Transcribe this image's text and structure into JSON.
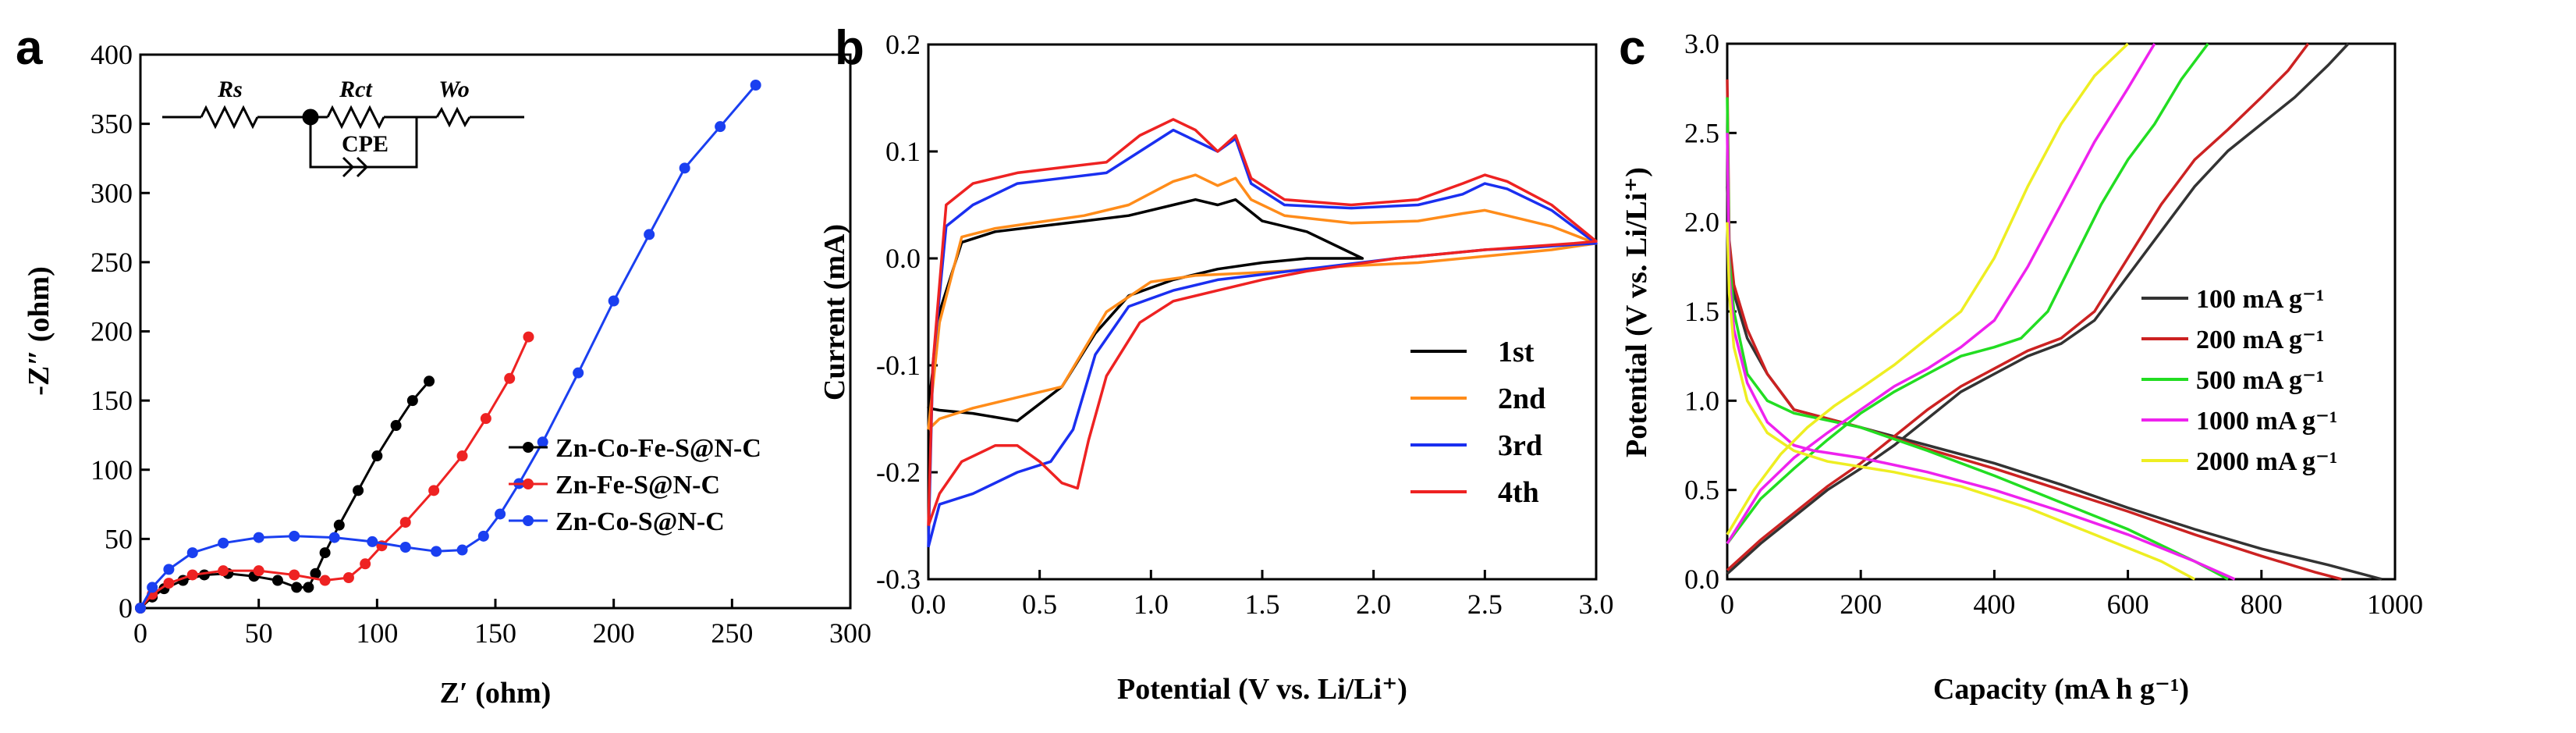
{
  "chart_data": [
    {
      "panel": "a",
      "type": "scatter",
      "xlabel": "Z′    (ohm)",
      "ylabel": "-Z″   (ohm)",
      "xlim": [
        0,
        300
      ],
      "ylim": [
        0,
        400
      ],
      "xticks": [
        0,
        50,
        100,
        150,
        200,
        250,
        300
      ],
      "yticks": [
        0,
        50,
        100,
        150,
        200,
        250,
        300,
        350,
        400
      ],
      "legend_position": "middle-right",
      "circuit": {
        "r1": "Rs",
        "r2": "Rct",
        "w": "Wo",
        "cpe": "CPE"
      },
      "series": [
        {
          "name": "Zn-Co-Fe-S@N-C",
          "color": "#000000",
          "x": [
            0,
            5,
            10,
            18,
            27,
            37,
            48,
            58,
            66,
            71,
            74,
            78,
            84,
            92,
            100,
            108,
            115,
            122
          ],
          "y": [
            0,
            8,
            14,
            20,
            24,
            25,
            23,
            20,
            15,
            15,
            25,
            40,
            60,
            85,
            110,
            132,
            150,
            164
          ]
        },
        {
          "name": "Zn-Fe-S@N-C",
          "color": "#ee2222",
          "x": [
            0,
            5,
            12,
            22,
            35,
            50,
            65,
            78,
            88,
            95,
            102,
            112,
            124,
            136,
            146,
            156,
            164
          ],
          "y": [
            0,
            10,
            18,
            24,
            27,
            27,
            24,
            20,
            22,
            32,
            45,
            62,
            85,
            110,
            137,
            166,
            196
          ]
        },
        {
          "name": "Zn-Co-S@N-C",
          "color": "#1a3ff0",
          "x": [
            0,
            5,
            12,
            22,
            35,
            50,
            65,
            82,
            98,
            112,
            125,
            136,
            145,
            152,
            160,
            170,
            185,
            200,
            215,
            230,
            245,
            260
          ],
          "y": [
            0,
            15,
            28,
            40,
            47,
            51,
            52,
            51,
            48,
            44,
            41,
            42,
            52,
            68,
            90,
            120,
            170,
            222,
            270,
            318,
            348,
            378
          ]
        }
      ]
    },
    {
      "panel": "b",
      "type": "line",
      "xlabel": "Potential (V vs. Li/Li⁺)",
      "ylabel": "Current (mA)",
      "xlim": [
        0,
        3
      ],
      "ylim": [
        -0.3,
        0.2
      ],
      "xticks": [
        "0.0",
        "0.5",
        "1.0",
        "1.5",
        "2.0",
        "2.5",
        "3.0"
      ],
      "yticks": [
        "0.2",
        "0.1",
        "0.0",
        "-0.1",
        "-0.2",
        "-0.3"
      ],
      "legend_position": "right",
      "series": [
        {
          "name": "1st",
          "color": "#000000",
          "x": [
            0.0,
            0.05,
            0.2,
            0.4,
            0.6,
            0.75,
            0.9,
            1.1,
            1.3,
            1.5,
            1.7,
            1.95,
            1.95,
            1.7,
            1.5,
            1.38,
            1.3,
            1.2,
            1.1,
            0.9,
            0.7,
            0.5,
            0.3,
            0.15,
            0.05,
            0.0
          ],
          "y": [
            -0.14,
            -0.142,
            -0.145,
            -0.152,
            -0.12,
            -0.07,
            -0.035,
            -0.02,
            -0.01,
            -0.004,
            0.0,
            0.0,
            0.0,
            0.025,
            0.035,
            0.055,
            0.05,
            0.055,
            0.05,
            0.04,
            0.035,
            0.03,
            0.025,
            0.015,
            -0.05,
            -0.14
          ]
        },
        {
          "name": "2nd",
          "color": "#ff8c1a",
          "x": [
            0.0,
            0.05,
            0.2,
            0.4,
            0.6,
            0.8,
            1.0,
            1.2,
            1.4,
            1.6,
            1.8,
            2.0,
            2.2,
            2.4,
            2.6,
            2.8,
            3.0,
            3.0,
            2.8,
            2.6,
            2.5,
            2.4,
            2.2,
            1.9,
            1.6,
            1.45,
            1.38,
            1.3,
            1.2,
            1.1,
            0.9,
            0.7,
            0.5,
            0.3,
            0.15,
            0.05,
            0.0
          ],
          "y": [
            -0.16,
            -0.15,
            -0.14,
            -0.13,
            -0.12,
            -0.05,
            -0.022,
            -0.016,
            -0.014,
            -0.012,
            -0.008,
            -0.006,
            -0.004,
            0.0,
            0.004,
            0.008,
            0.014,
            0.014,
            0.03,
            0.04,
            0.045,
            0.042,
            0.035,
            0.033,
            0.04,
            0.055,
            0.075,
            0.068,
            0.078,
            0.072,
            0.05,
            0.04,
            0.034,
            0.028,
            0.02,
            -0.06,
            -0.16
          ]
        },
        {
          "name": "3rd",
          "color": "#1a2ff0",
          "x": [
            0.0,
            0.05,
            0.2,
            0.4,
            0.55,
            0.65,
            0.75,
            0.9,
            1.1,
            1.3,
            1.5,
            1.7,
            1.9,
            2.1,
            2.3,
            2.5,
            2.7,
            2.9,
            3.0,
            3.0,
            2.8,
            2.6,
            2.5,
            2.4,
            2.2,
            1.9,
            1.6,
            1.45,
            1.38,
            1.3,
            1.2,
            1.1,
            0.95,
            0.8,
            0.6,
            0.4,
            0.2,
            0.08,
            0.02,
            0.0
          ],
          "y": [
            -0.27,
            -0.23,
            -0.22,
            -0.2,
            -0.19,
            -0.16,
            -0.09,
            -0.045,
            -0.03,
            -0.02,
            -0.015,
            -0.01,
            -0.005,
            0.0,
            0.004,
            0.008,
            0.01,
            0.013,
            0.014,
            0.014,
            0.045,
            0.065,
            0.07,
            0.06,
            0.05,
            0.047,
            0.05,
            0.07,
            0.112,
            0.1,
            0.11,
            0.12,
            0.1,
            0.08,
            0.075,
            0.07,
            0.05,
            0.03,
            -0.1,
            -0.27
          ]
        },
        {
          "name": "4th",
          "color": "#ee2222",
          "x": [
            0.0,
            0.05,
            0.15,
            0.3,
            0.4,
            0.5,
            0.6,
            0.67,
            0.72,
            0.8,
            0.95,
            1.1,
            1.3,
            1.5,
            1.7,
            1.9,
            2.1,
            2.3,
            2.5,
            2.7,
            2.9,
            3.0,
            3.0,
            2.8,
            2.6,
            2.5,
            2.4,
            2.2,
            1.9,
            1.6,
            1.45,
            1.38,
            1.3,
            1.2,
            1.1,
            0.95,
            0.8,
            0.6,
            0.4,
            0.2,
            0.08,
            0.02,
            0.0
          ],
          "y": [
            -0.25,
            -0.22,
            -0.19,
            -0.175,
            -0.175,
            -0.19,
            -0.21,
            -0.215,
            -0.17,
            -0.11,
            -0.06,
            -0.04,
            -0.03,
            -0.02,
            -0.012,
            -0.006,
            0.0,
            0.004,
            0.008,
            0.011,
            0.014,
            0.016,
            0.016,
            0.05,
            0.072,
            0.078,
            0.07,
            0.055,
            0.05,
            0.055,
            0.075,
            0.115,
            0.1,
            0.12,
            0.13,
            0.115,
            0.09,
            0.085,
            0.08,
            0.07,
            0.05,
            -0.1,
            -0.25
          ]
        }
      ]
    },
    {
      "panel": "c",
      "type": "line",
      "xlabel": "Capacity (mA h g⁻¹)",
      "ylabel": "Potential (V vs. Li/Li⁺)",
      "xlim": [
        0,
        1000
      ],
      "ylim": [
        0,
        3
      ],
      "xticks": [
        0,
        200,
        400,
        600,
        800,
        1000
      ],
      "yticks": [
        "0.0",
        "0.5",
        "1.0",
        "1.5",
        "2.0",
        "2.5",
        "3.0"
      ],
      "legend_position": "right",
      "series": [
        {
          "name": "100 mA g⁻¹",
          "color": "#333333",
          "discharge": {
            "x": [
              0,
              3,
              10,
              30,
              60,
              100,
              200,
              300,
              400,
              500,
              600,
              700,
              800,
              900,
              980
            ],
            "y": [
              2.2,
              1.8,
              1.6,
              1.35,
              1.15,
              0.95,
              0.85,
              0.75,
              0.65,
              0.53,
              0.4,
              0.28,
              0.17,
              0.08,
              0.0
            ]
          },
          "charge": {
            "x": [
              0,
              50,
              100,
              150,
              200,
              250,
              300,
              350,
              400,
              450,
              500,
              550,
              600,
              650,
              700,
              750,
              800,
              850,
              900,
              930
            ],
            "y": [
              0.03,
              0.2,
              0.35,
              0.5,
              0.62,
              0.75,
              0.9,
              1.05,
              1.15,
              1.25,
              1.32,
              1.45,
              1.7,
              1.95,
              2.2,
              2.4,
              2.55,
              2.7,
              2.88,
              3.0
            ]
          }
        },
        {
          "name": "200 mA g⁻¹",
          "color": "#cc2222",
          "discharge": {
            "x": [
              0,
              3,
              10,
              30,
              60,
              100,
              200,
              300,
              400,
              500,
              600,
              700,
              800,
              880,
              920
            ],
            "y": [
              2.8,
              1.9,
              1.65,
              1.4,
              1.15,
              0.95,
              0.85,
              0.73,
              0.62,
              0.5,
              0.38,
              0.25,
              0.13,
              0.04,
              0.0
            ]
          },
          "charge": {
            "x": [
              0,
              50,
              100,
              150,
              200,
              250,
              300,
              350,
              400,
              450,
              500,
              550,
              600,
              650,
              700,
              750,
              800,
              840,
              870
            ],
            "y": [
              0.05,
              0.22,
              0.37,
              0.52,
              0.65,
              0.8,
              0.95,
              1.08,
              1.18,
              1.28,
              1.35,
              1.5,
              1.8,
              2.1,
              2.35,
              2.52,
              2.7,
              2.85,
              3.0
            ]
          }
        },
        {
          "name": "500 mA g⁻¹",
          "color": "#22dd22",
          "discharge": {
            "x": [
              0,
              3,
              10,
              30,
              60,
              100,
              200,
              300,
              400,
              500,
              600,
              700,
              750
            ],
            "y": [
              2.7,
              1.8,
              1.5,
              1.15,
              1.0,
              0.93,
              0.85,
              0.72,
              0.58,
              0.43,
              0.28,
              0.1,
              0.0
            ]
          },
          "charge": {
            "x": [
              0,
              50,
              100,
              150,
              200,
              250,
              300,
              350,
              400,
              440,
              480,
              520,
              560,
              600,
              640,
              680,
              720
            ],
            "y": [
              0.2,
              0.45,
              0.62,
              0.78,
              0.93,
              1.05,
              1.15,
              1.25,
              1.3,
              1.35,
              1.5,
              1.8,
              2.1,
              2.35,
              2.55,
              2.8,
              3.0
            ]
          }
        },
        {
          "name": "1000 mA g⁻¹",
          "color": "#ee22ee",
          "discharge": {
            "x": [
              0,
              3,
              10,
              30,
              60,
              100,
              130,
              200,
              300,
              400,
              500,
              600,
              700,
              760
            ],
            "y": [
              2.5,
              1.7,
              1.4,
              1.1,
              0.88,
              0.75,
              0.72,
              0.68,
              0.6,
              0.5,
              0.38,
              0.25,
              0.1,
              0.0
            ]
          },
          "charge": {
            "x": [
              0,
              50,
              100,
              150,
              200,
              250,
              300,
              350,
              400,
              450,
              500,
              550,
              600,
              640
            ],
            "y": [
              0.2,
              0.5,
              0.68,
              0.82,
              0.95,
              1.08,
              1.18,
              1.3,
              1.45,
              1.75,
              2.1,
              2.45,
              2.75,
              3.0
            ]
          }
        },
        {
          "name": "2000 mA g⁻¹",
          "color": "#eeee22",
          "discharge": {
            "x": [
              0,
              3,
              10,
              30,
              60,
              100,
              150,
              250,
              350,
              450,
              550,
              650,
              700
            ],
            "y": [
              2.0,
              1.6,
              1.3,
              1.0,
              0.82,
              0.72,
              0.66,
              0.6,
              0.52,
              0.4,
              0.25,
              0.1,
              0.0
            ]
          },
          "charge": {
            "x": [
              0,
              40,
              80,
              120,
              160,
              200,
              250,
              300,
              350,
              400,
              450,
              500,
              550,
              600
            ],
            "y": [
              0.25,
              0.5,
              0.7,
              0.85,
              0.97,
              1.07,
              1.2,
              1.35,
              1.5,
              1.8,
              2.2,
              2.55,
              2.82,
              3.0
            ]
          }
        }
      ]
    }
  ]
}
